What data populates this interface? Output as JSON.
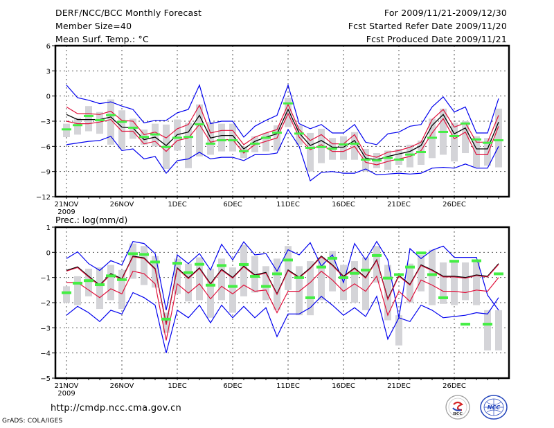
{
  "header": {
    "title": "DERF/NCC/BCC Monthly Forecast",
    "member_size": "Member Size=40",
    "variable": "Mean Surf. Temp.: °C",
    "period": "For 2009/11/21-2009/12/30",
    "started": "Fcst Started Refer Date 2009/11/20",
    "produced": "Fcst Produced Date 2009/11/21"
  },
  "footer": {
    "url": "http://cmdp.ncc.cma.gov.cn",
    "credit": "GrADS: COLA/IGES",
    "logos": [
      "BCC",
      "NCC"
    ]
  },
  "colors": {
    "max_min": "#0000ee",
    "spread": "#e0103a",
    "mean": "#000000",
    "marker": "#44ee44",
    "box": "#d4d4d8",
    "grid": "#555555"
  },
  "chart_data": [
    {
      "type": "line",
      "title": "Mean Surf. Temp.: °C",
      "xlabel": "",
      "ylabel": "°C",
      "ylim": [
        -12,
        6
      ],
      "yticks": [
        -12,
        -9,
        -6,
        -3,
        0,
        3,
        6
      ],
      "xtick_labels": [
        "21NOV",
        "26NOV",
        "1DEC",
        "6DEC",
        "11DEC",
        "16DEC",
        "21DEC",
        "26DEC"
      ],
      "xtick_day_index": [
        0,
        5,
        10,
        15,
        20,
        25,
        30,
        35
      ],
      "year_label": "2009",
      "grid": true,
      "x": [
        "11/21",
        "11/22",
        "11/23",
        "11/24",
        "11/25",
        "11/26",
        "11/27",
        "11/28",
        "11/29",
        "11/30",
        "12/01",
        "12/02",
        "12/03",
        "12/04",
        "12/05",
        "12/06",
        "12/07",
        "12/08",
        "12/09",
        "12/10",
        "12/11",
        "12/12",
        "12/13",
        "12/14",
        "12/15",
        "12/16",
        "12/17",
        "12/18",
        "12/19",
        "12/20",
        "12/21",
        "12/22",
        "12/23",
        "12/24",
        "12/25",
        "12/26",
        "12/27",
        "12/28",
        "12/29",
        "12/30"
      ],
      "series": [
        {
          "name": "max",
          "values": [
            1.3,
            -0.2,
            -0.5,
            -0.9,
            -0.7,
            -1.2,
            -1.6,
            -3.2,
            -2.9,
            -2.9,
            -2.0,
            -1.6,
            1.3,
            -3.3,
            -3.0,
            -3.0,
            -4.9,
            -3.6,
            -2.9,
            -2.3,
            1.3,
            -3.3,
            -3.9,
            -3.4,
            -4.4,
            -4.4,
            -3.4,
            -5.5,
            -5.8,
            -4.5,
            -4.3,
            -3.6,
            -3.4,
            -1.3,
            -0.1,
            -1.9,
            -1.3,
            -4.4,
            -4.4,
            -0.3
          ]
        },
        {
          "name": "spread_upper",
          "values": [
            -1.3,
            -2.1,
            -2.1,
            -2.2,
            -1.8,
            -2.9,
            -3.0,
            -4.6,
            -4.3,
            -5.0,
            -3.9,
            -3.4,
            -1.1,
            -4.4,
            -4.1,
            -4.1,
            -5.8,
            -4.9,
            -4.4,
            -4.0,
            -1.0,
            -4.0,
            -5.3,
            -4.6,
            -5.7,
            -5.7,
            -4.6,
            -7.0,
            -7.3,
            -6.7,
            -6.5,
            -6.1,
            -5.5,
            -2.8,
            -1.6,
            -3.7,
            -3.2,
            -5.5,
            -5.5,
            -2.3
          ]
        },
        {
          "name": "mean",
          "values": [
            -2.2,
            -2.8,
            -2.8,
            -2.8,
            -2.5,
            -3.7,
            -3.8,
            -5.2,
            -4.9,
            -5.9,
            -4.6,
            -4.3,
            -2.3,
            -5.0,
            -4.7,
            -4.7,
            -6.3,
            -5.4,
            -4.9,
            -4.5,
            -1.6,
            -4.4,
            -5.9,
            -5.3,
            -6.1,
            -6.1,
            -5.3,
            -7.4,
            -7.6,
            -7.2,
            -6.9,
            -6.6,
            -5.9,
            -3.5,
            -2.2,
            -4.5,
            -3.8,
            -6.3,
            -6.3,
            -3.1
          ]
        },
        {
          "name": "spread_lower",
          "values": [
            -3.0,
            -3.3,
            -3.3,
            -3.1,
            -2.8,
            -4.2,
            -4.2,
            -5.7,
            -5.4,
            -6.6,
            -5.3,
            -5.0,
            -3.4,
            -5.5,
            -5.2,
            -5.2,
            -6.8,
            -5.8,
            -5.4,
            -5.0,
            -2.1,
            -4.9,
            -6.4,
            -5.8,
            -6.6,
            -6.6,
            -6.0,
            -7.9,
            -8.2,
            -7.8,
            -7.5,
            -7.2,
            -6.5,
            -4.4,
            -2.7,
            -5.1,
            -4.3,
            -7.0,
            -7.0,
            -3.6
          ]
        },
        {
          "name": "min",
          "values": [
            -5.8,
            -5.6,
            -5.4,
            -5.3,
            -4.8,
            -6.5,
            -6.3,
            -7.5,
            -7.2,
            -9.2,
            -7.7,
            -7.5,
            -6.7,
            -7.5,
            -7.3,
            -7.3,
            -7.7,
            -7.0,
            -7.0,
            -6.8,
            -4.0,
            -6.0,
            -10.1,
            -9.1,
            -9.0,
            -9.2,
            -9.2,
            -8.7,
            -9.4,
            -9.3,
            -9.2,
            -9.3,
            -9.2,
            -8.6,
            -8.5,
            -8.6,
            -8.1,
            -8.6,
            -8.6,
            -6.0
          ]
        },
        {
          "name": "observed_marker",
          "values": [
            -4.0,
            -3.5,
            -2.4,
            -2.9,
            -2.3,
            -3.1,
            -3.8,
            -4.9,
            -4.6,
            -6.1,
            -5.0,
            -4.9,
            -3.4,
            -5.7,
            -5.3,
            -5.3,
            -6.6,
            -5.7,
            -5.0,
            -4.4,
            -0.9,
            -4.5,
            -6.2,
            -6.1,
            -6.3,
            -5.8,
            -5.7,
            -7.6,
            -7.7,
            -7.4,
            -7.6,
            -7.0,
            -6.7,
            -5.0,
            -4.3,
            -4.8,
            -3.3,
            -5.2,
            -5.6,
            -5.3
          ]
        },
        {
          "name": "box_high",
          "values": [
            -3.3,
            -2.6,
            -1.2,
            -1.9,
            -0.4,
            -1.7,
            -2.7,
            -4.0,
            -3.3,
            -3.4,
            -2.8,
            -3.2,
            -1.0,
            -3.1,
            -3.3,
            -3.3,
            -6.0,
            -4.8,
            -4.4,
            -3.5,
            -0.2,
            -3.5,
            -4.4,
            -3.9,
            -5.0,
            -4.8,
            -4.3,
            -6.3,
            -6.8,
            -6.5,
            -6.3,
            -5.8,
            -5.3,
            -2.7,
            -1.5,
            -3.2,
            -3.0,
            -4.8,
            -5.0,
            -1.5
          ]
        },
        {
          "name": "box_low",
          "values": [
            -4.9,
            -4.6,
            -4.2,
            -4.5,
            -5.8,
            -6.3,
            -5.1,
            -5.8,
            -6.0,
            -8.7,
            -6.5,
            -8.6,
            -7.2,
            -7.0,
            -6.6,
            -6.6,
            -7.4,
            -6.7,
            -6.6,
            -6.5,
            -3.7,
            -5.8,
            -9.0,
            -8.0,
            -7.6,
            -7.6,
            -7.6,
            -9.0,
            -8.6,
            -8.8,
            -8.2,
            -8.5,
            -8.2,
            -7.4,
            -7.0,
            -7.8,
            -6.8,
            -8.5,
            -8.3,
            -8.5
          ]
        }
      ]
    },
    {
      "type": "line",
      "title": "Prec.: log(mm/d)",
      "xlabel": "",
      "ylabel": "log(mm/d)",
      "ylim": [
        -5,
        1
      ],
      "yticks": [
        -5,
        -4,
        -3,
        -2,
        -1,
        0,
        1
      ],
      "xtick_labels": [
        "21NOV",
        "26NOV",
        "1DEC",
        "6DEC",
        "11DEC",
        "16DEC",
        "21DEC",
        "26DEC"
      ],
      "xtick_day_index": [
        0,
        5,
        10,
        15,
        20,
        25,
        30,
        35
      ],
      "year_label": "2009",
      "grid": true,
      "x": [
        "11/21",
        "11/22",
        "11/23",
        "11/24",
        "11/25",
        "11/26",
        "11/27",
        "11/28",
        "11/29",
        "11/30",
        "12/01",
        "12/02",
        "12/03",
        "12/04",
        "12/05",
        "12/06",
        "12/07",
        "12/08",
        "12/09",
        "12/10",
        "12/11",
        "12/12",
        "12/13",
        "12/14",
        "12/15",
        "12/16",
        "12/17",
        "12/18",
        "12/19",
        "12/20",
        "12/21",
        "12/22",
        "12/23",
        "12/24",
        "12/25",
        "12/26",
        "12/27",
        "12/28",
        "12/29",
        "12/30"
      ],
      "series": [
        {
          "name": "max",
          "values": [
            -0.25,
            0.02,
            -0.45,
            -0.72,
            -0.33,
            -0.5,
            0.43,
            0.35,
            -0.05,
            -2.3,
            -0.1,
            -0.45,
            -0.05,
            -0.7,
            0.32,
            -0.3,
            0.42,
            -0.1,
            -0.05,
            -0.75,
            0.1,
            -0.1,
            0.38,
            -0.55,
            -0.1,
            -1.2,
            0.35,
            -0.3,
            0.43,
            -0.3,
            -2.6,
            0.15,
            -0.25,
            0.08,
            0.25,
            -0.2,
            -0.2,
            -0.2,
            -1.7,
            -2.3
          ]
        },
        {
          "name": "mean",
          "values": [
            -0.72,
            -0.58,
            -0.95,
            -1.3,
            -0.85,
            -1.05,
            -0.15,
            -0.22,
            -0.65,
            -2.85,
            -0.62,
            -1.02,
            -0.62,
            -1.25,
            -0.68,
            -1.0,
            -0.55,
            -0.9,
            -0.8,
            -1.65,
            -0.7,
            -0.99,
            -0.62,
            -0.15,
            -0.5,
            -0.95,
            -0.62,
            -1.0,
            -0.3,
            -1.85,
            -0.92,
            -1.28,
            -0.5,
            -0.7,
            -0.95,
            -0.95,
            -1.0,
            -0.9,
            -0.95,
            -0.45
          ]
        },
        {
          "name": "spread_lower",
          "values": [
            -1.2,
            -1.2,
            -1.5,
            -1.8,
            -1.45,
            -1.65,
            -0.75,
            -0.85,
            -1.25,
            -3.5,
            -1.25,
            -1.62,
            -1.25,
            -1.85,
            -1.35,
            -1.65,
            -1.3,
            -1.55,
            -1.5,
            -2.4,
            -1.55,
            -1.55,
            -1.2,
            -0.75,
            -1.1,
            -1.55,
            -1.25,
            -1.55,
            -0.95,
            -2.5,
            -1.55,
            -1.95,
            -1.1,
            -1.3,
            -1.55,
            -1.55,
            -1.6,
            -1.5,
            -1.55,
            -1.0
          ]
        },
        {
          "name": "min",
          "values": [
            -2.5,
            -2.15,
            -2.4,
            -2.75,
            -2.3,
            -2.45,
            -1.6,
            -1.8,
            -2.1,
            -4.0,
            -2.3,
            -2.6,
            -2.1,
            -2.8,
            -2.1,
            -2.6,
            -2.15,
            -2.6,
            -2.2,
            -3.35,
            -2.45,
            -2.45,
            -2.2,
            -1.75,
            -2.1,
            -2.5,
            -2.2,
            -2.55,
            -1.75,
            -3.45,
            -2.6,
            -2.75,
            -2.1,
            -2.3,
            -2.6,
            -2.55,
            -2.5,
            -2.4,
            -2.45,
            -1.8
          ]
        },
        {
          "name": "observed_marker",
          "values": [
            -1.6,
            -1.22,
            -1.12,
            -1.28,
            -0.93,
            -1.08,
            -0.05,
            -0.08,
            -0.38,
            -2.65,
            -0.43,
            -0.8,
            -0.47,
            -1.3,
            -0.52,
            -1.35,
            -0.48,
            -0.95,
            -1.35,
            -0.85,
            -0.3,
            -1.0,
            -1.8,
            -0.58,
            -0.23,
            -1.0,
            -0.83,
            -0.7,
            -0.12,
            -1.02,
            -0.88,
            -0.58,
            -0.02,
            -0.88,
            -1.8,
            -0.35,
            -2.85,
            -0.33,
            -2.85,
            -0.85
          ]
        },
        {
          "name": "box_high",
          "values": [
            -1.35,
            -0.95,
            -0.65,
            -0.6,
            -0.5,
            -0.7,
            0.35,
            0.25,
            -0.15,
            -2.4,
            -0.25,
            -0.45,
            -0.2,
            -0.65,
            -0.25,
            -0.6,
            0.3,
            -0.15,
            -0.55,
            -0.25,
            0.25,
            -0.55,
            -0.35,
            -0.2,
            0.05,
            -0.5,
            -0.35,
            -0.2,
            0.25,
            -0.5,
            -2.5,
            -0.45,
            -0.1,
            0.1,
            -0.4,
            -0.4,
            -0.4,
            -0.3,
            -2.3,
            -2.3
          ]
        },
        {
          "name": "box_low",
          "values": [
            -2.0,
            -2.1,
            -1.75,
            -2.25,
            -1.9,
            -2.25,
            -1.05,
            -1.3,
            -1.4,
            -3.2,
            -1.65,
            -1.95,
            -1.9,
            -2.6,
            -1.9,
            -2.4,
            -1.75,
            -1.6,
            -1.9,
            -2.3,
            -1.5,
            -2.5,
            -2.5,
            -1.9,
            -1.55,
            -1.9,
            -2.0,
            -2.3,
            -1.2,
            -2.7,
            -3.7,
            -2.0,
            -1.55,
            -2.1,
            -2.05,
            -2.1,
            -1.9,
            -2.1,
            -3.9,
            -3.9
          ]
        }
      ]
    }
  ]
}
